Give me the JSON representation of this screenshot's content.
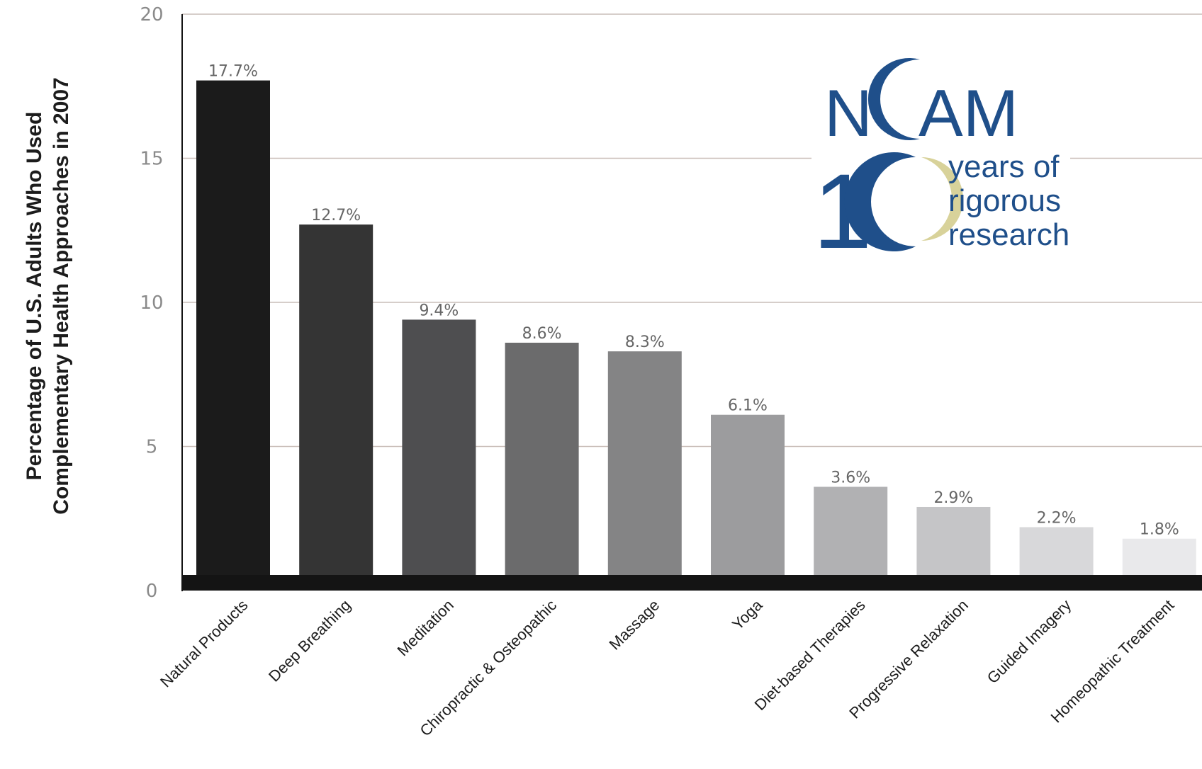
{
  "chart_data": {
    "type": "bar",
    "categories": [
      "Natural Products",
      "Deep Breathing",
      "Meditation",
      "Chiropractic & Osteopathic",
      "Massage",
      "Yoga",
      "Diet-based Therapies",
      "Progressive Relaxation",
      "Guided Imagery",
      "Homeopathic Treatment"
    ],
    "values": [
      17.7,
      12.7,
      9.4,
      8.6,
      8.3,
      6.1,
      3.6,
      2.9,
      2.2,
      1.8
    ],
    "data_labels": [
      "17.7%",
      "12.7%",
      "9.4%",
      "8.6%",
      "8.3%",
      "6.1%",
      "3.6%",
      "2.9%",
      "2.2%",
      "1.8%"
    ],
    "bar_colors": [
      "#1b1b1b",
      "#343434",
      "#4e4e50",
      "#6b6b6c",
      "#848485",
      "#9c9c9e",
      "#b1b1b3",
      "#c5c5c7",
      "#d8d8da",
      "#e9e9eb"
    ],
    "title": "",
    "xlabel": "",
    "ylabel_lines": [
      "Percentage of U.S. Adults Who Used",
      "Complementary Health Approaches in 2007"
    ],
    "ylim": [
      0,
      20
    ],
    "yticks": [
      "0",
      "5",
      "10",
      "15",
      "20"
    ],
    "grid": true,
    "legend": "none"
  },
  "logo": {
    "name": "NCCAM",
    "letters": [
      "N",
      "C",
      "AM"
    ],
    "ten_digit": "1",
    "tagline": [
      "years of",
      "rigorous",
      "research"
    ],
    "primary_color": "#1f4f8a",
    "accent_color": "#d8d29a"
  },
  "colors": {
    "axis": "#141414",
    "grid": "#c9bdb8",
    "tick_text": "#8a8a8a",
    "data_label": "#666666"
  }
}
